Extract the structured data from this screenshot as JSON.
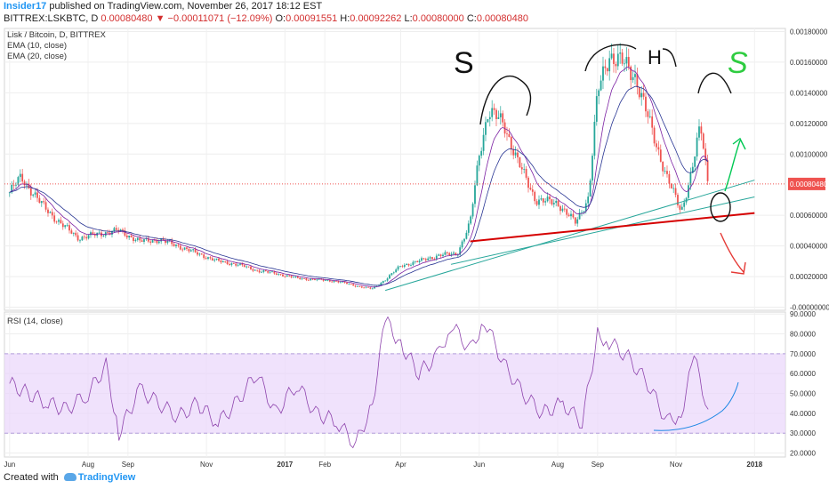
{
  "header": {
    "author": "Insider17",
    "published_text": "published on TradingView.com, November 26, 2017 18:12 EST",
    "symbol": "BITTREX:LSKBTC, D",
    "last_price": "0.00080480",
    "change": "▼ −0.00011071 (−12.09%)",
    "o_label": "O:",
    "o_value": "0.00091551",
    "h_label": "H:",
    "h_value": "0.00092262",
    "l_label": "L:",
    "l_value": "0.00080000",
    "c_label": "C:",
    "c_value": "0.00080480"
  },
  "legend": {
    "title": "Lisk / Bitcoin, D, BITTREX",
    "ema10": "EMA (10, close)",
    "ema20": "EMA (20, close)"
  },
  "rsi_legend": "RSI (14, close)",
  "price_badge": "0.00080480",
  "annotations": {
    "left_shoulder": "S",
    "head": "H",
    "right_shoulder": "S"
  },
  "footer": {
    "created_with": "Created with",
    "brand": "TradingView"
  },
  "colors": {
    "up": "#26a69a",
    "down": "#ef5350",
    "ema10": "#7b1fa2",
    "ema20": "#283593",
    "neckline": "#d50000",
    "trendline": "#26a69a",
    "rsi": "#8e44ad",
    "rsi_band": "#ead6fb",
    "ink": "#111111",
    "green_arrow": "#00c853",
    "red_arrow": "#e53935"
  },
  "chart_data": [
    {
      "type": "candlestick",
      "title": "Lisk / Bitcoin, D, BITTREX",
      "series_names": [
        "EMA (10, close)",
        "EMA (20, close)"
      ],
      "x_ticks": [
        "Jun",
        "Aug",
        "Sep",
        "Nov",
        "2017",
        "Feb",
        "Apr",
        "Jun",
        "Aug",
        "Sep",
        "Nov",
        "2018"
      ],
      "y_ticks": [
        "0.00180000",
        "0.00160000",
        "0.00140000",
        "0.00120000",
        "0.00100000",
        "0.00060000",
        "0.00040000",
        "0.00020000",
        "-0.00000000"
      ],
      "ylim": [
        -2e-05,
        0.00182
      ],
      "last_price_line": 0.0008048,
      "price_path": [
        [
          "2016-06-01",
          0.00075
        ],
        [
          "2016-06-10",
          0.00085
        ],
        [
          "2016-06-25",
          0.00068
        ],
        [
          "2016-07-10",
          0.00055
        ],
        [
          "2016-07-25",
          0.00045
        ],
        [
          "2016-08-10",
          0.00048
        ],
        [
          "2016-08-25",
          0.0005
        ],
        [
          "2016-09-10",
          0.00043
        ],
        [
          "2016-09-25",
          0.00044
        ],
        [
          "2016-10-10",
          0.0004
        ],
        [
          "2016-10-25",
          0.00035
        ],
        [
          "2016-11-10",
          0.0003
        ],
        [
          "2016-11-25",
          0.00028
        ],
        [
          "2016-12-10",
          0.00024
        ],
        [
          "2016-12-25",
          0.00022
        ],
        [
          "2017-01-10",
          0.00019
        ],
        [
          "2017-01-25",
          0.00018
        ],
        [
          "2017-02-10",
          0.00017
        ],
        [
          "2017-02-25",
          0.00014
        ],
        [
          "2017-03-10",
          0.00012
        ],
        [
          "2017-03-20",
          0.00018
        ],
        [
          "2017-04-01",
          0.00027
        ],
        [
          "2017-04-15",
          0.0003
        ],
        [
          "2017-05-01",
          0.00034
        ],
        [
          "2017-05-15",
          0.00035
        ],
        [
          "2017-05-25",
          0.00055
        ],
        [
          "2017-06-01",
          0.001
        ],
        [
          "2017-06-08",
          0.00128
        ],
        [
          "2017-06-20",
          0.0012
        ],
        [
          "2017-07-01",
          0.00095
        ],
        [
          "2017-07-15",
          0.0007
        ],
        [
          "2017-08-01",
          0.00068
        ],
        [
          "2017-08-15",
          0.00055
        ],
        [
          "2017-08-25",
          0.00072
        ],
        [
          "2017-09-01",
          0.0014
        ],
        [
          "2017-09-10",
          0.00165
        ],
        [
          "2017-09-20",
          0.0016
        ],
        [
          "2017-10-01",
          0.0015
        ],
        [
          "2017-10-15",
          0.0011
        ],
        [
          "2017-10-25",
          0.00085
        ],
        [
          "2017-11-05",
          0.00062
        ],
        [
          "2017-11-12",
          0.00085
        ],
        [
          "2017-11-20",
          0.00118
        ],
        [
          "2017-11-26",
          0.0008
        ]
      ],
      "neckline": [
        [
          "2017-05-25",
          0.00043
        ],
        [
          "2018-01-01",
          0.000615
        ]
      ],
      "trendlines": [
        [
          [
            "2017-03-20",
            0.00011
          ],
          [
            "2018-01-01",
            0.00083
          ]
        ],
        [
          [
            "2017-05-10",
            0.00028
          ],
          [
            "2018-01-01",
            0.00072
          ]
        ]
      ]
    },
    {
      "type": "line",
      "title": "RSI (14, close)",
      "y_ticks": [
        "90.0000",
        "80.0000",
        "70.0000",
        "60.0000",
        "50.0000",
        "40.0000",
        "30.0000",
        "20.0000"
      ],
      "ylim": [
        18,
        91
      ],
      "bands": [
        30,
        70
      ],
      "values": [
        [
          "2016-06-01",
          55
        ],
        [
          "2016-06-15",
          50
        ],
        [
          "2016-07-01",
          45
        ],
        [
          "2016-07-15",
          42
        ],
        [
          "2016-08-01",
          50
        ],
        [
          "2016-08-15",
          64
        ],
        [
          "2016-08-25",
          30
        ],
        [
          "2016-09-10",
          52
        ],
        [
          "2016-09-25",
          45
        ],
        [
          "2016-10-10",
          38
        ],
        [
          "2016-10-25",
          45
        ],
        [
          "2016-11-10",
          35
        ],
        [
          "2016-11-25",
          46
        ],
        [
          "2016-12-10",
          60
        ],
        [
          "2016-12-25",
          40
        ],
        [
          "2017-01-10",
          55
        ],
        [
          "2017-01-25",
          40
        ],
        [
          "2017-02-10",
          36
        ],
        [
          "2017-02-25",
          24
        ],
        [
          "2017-03-10",
          45
        ],
        [
          "2017-03-20",
          87
        ],
        [
          "2017-04-01",
          75
        ],
        [
          "2017-04-15",
          60
        ],
        [
          "2017-05-01",
          70
        ],
        [
          "2017-05-10",
          85
        ],
        [
          "2017-05-25",
          72
        ],
        [
          "2017-06-05",
          87
        ],
        [
          "2017-06-20",
          65
        ],
        [
          "2017-07-05",
          50
        ],
        [
          "2017-07-20",
          40
        ],
        [
          "2017-08-05",
          45
        ],
        [
          "2017-08-20",
          35
        ],
        [
          "2017-09-01",
          80
        ],
        [
          "2017-09-10",
          76
        ],
        [
          "2017-09-25",
          68
        ],
        [
          "2017-10-10",
          55
        ],
        [
          "2017-10-25",
          36
        ],
        [
          "2017-11-05",
          40
        ],
        [
          "2017-11-15",
          68
        ],
        [
          "2017-11-26",
          42
        ]
      ]
    }
  ]
}
